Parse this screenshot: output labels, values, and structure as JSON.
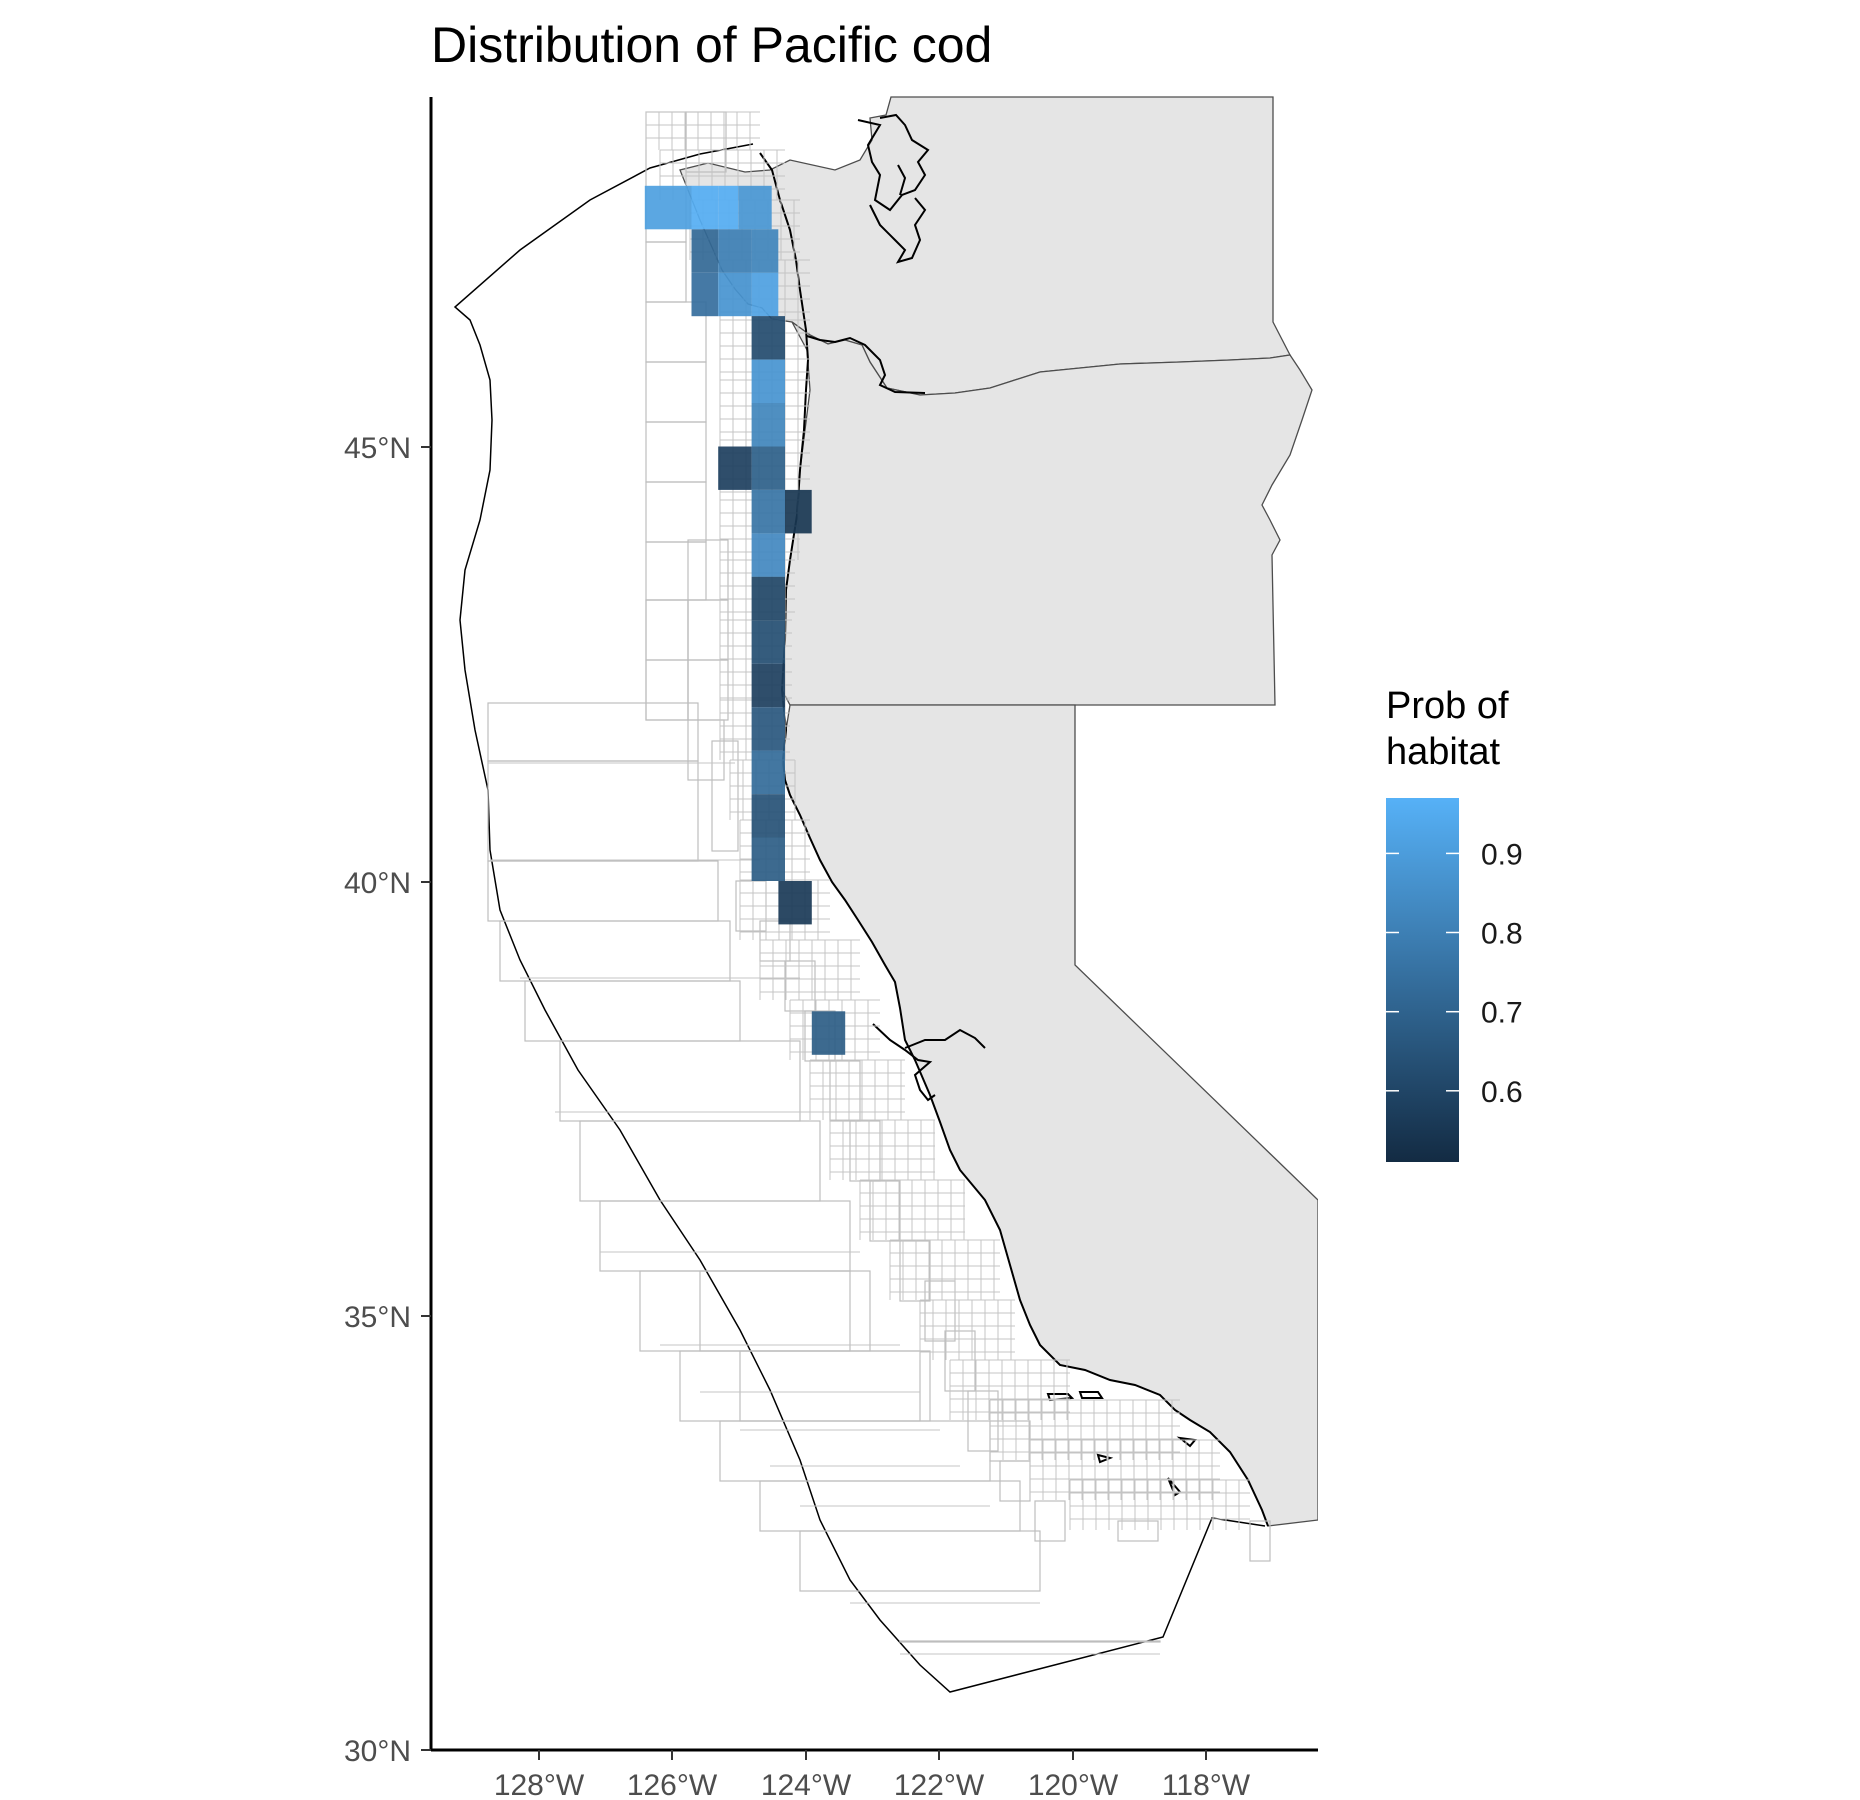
{
  "title": "Distribution of Pacific cod",
  "legend": {
    "title_line1": "Prob of",
    "title_line2": "habitat",
    "ticks": [
      "0.9",
      "0.8",
      "0.7",
      "0.6"
    ],
    "low_color": "#132b43",
    "high_color": "#56b1f7"
  },
  "axes": {
    "x_ticks": [
      "128°W",
      "126°W",
      "124°W",
      "122°W",
      "120°W",
      "118°W"
    ],
    "y_ticks": [
      "45°N",
      "40°N",
      "35°N",
      "30°N"
    ]
  },
  "chart_data": {
    "type": "heatmap",
    "title": "Distribution of Pacific cod",
    "x_range": [
      -129.5,
      -116.5
    ],
    "y_range": [
      30.0,
      49.0
    ],
    "color_scale": {
      "name": "Prob of habitat",
      "min": 0.51,
      "max": 0.97
    },
    "cells": [
      {
        "lon0": -126.4,
        "lon1": -125.7,
        "lat0": 47.5,
        "lat1": 48.0,
        "value": 0.91
      },
      {
        "lon0": -125.7,
        "lon1": -125.3,
        "lat0": 47.5,
        "lat1": 48.0,
        "value": 0.96
      },
      {
        "lon0": -125.3,
        "lon1": -125.0,
        "lat0": 47.5,
        "lat1": 48.0,
        "value": 0.96
      },
      {
        "lon0": -125.0,
        "lon1": -124.5,
        "lat0": 47.5,
        "lat1": 48.0,
        "value": 0.88
      },
      {
        "lon0": -125.7,
        "lon1": -125.3,
        "lat0": 47.0,
        "lat1": 47.5,
        "value": 0.72
      },
      {
        "lon0": -125.7,
        "lon1": -125.3,
        "lat0": 46.5,
        "lat1": 47.0,
        "value": 0.74
      },
      {
        "lon0": -125.3,
        "lon1": -124.8,
        "lat0": 47.0,
        "lat1": 47.5,
        "value": 0.8
      },
      {
        "lon0": -125.3,
        "lon1": -124.8,
        "lat0": 46.5,
        "lat1": 47.0,
        "value": 0.87
      },
      {
        "lon0": -124.8,
        "lon1": -124.4,
        "lat0": 47.0,
        "lat1": 47.5,
        "value": 0.82
      },
      {
        "lon0": -124.8,
        "lon1": -124.4,
        "lat0": 46.5,
        "lat1": 47.0,
        "value": 0.92
      },
      {
        "lon0": -124.8,
        "lon1": -124.3,
        "lat0": 46.0,
        "lat1": 46.5,
        "value": 0.62
      },
      {
        "lon0": -124.8,
        "lon1": -124.3,
        "lat0": 45.5,
        "lat1": 46.0,
        "value": 0.87
      },
      {
        "lon0": -124.8,
        "lon1": -124.3,
        "lat0": 45.0,
        "lat1": 45.5,
        "value": 0.82
      },
      {
        "lon0": -125.3,
        "lon1": -124.8,
        "lat0": 44.5,
        "lat1": 45.0,
        "value": 0.58
      },
      {
        "lon0": -124.8,
        "lon1": -124.3,
        "lat0": 44.5,
        "lat1": 45.0,
        "value": 0.69
      },
      {
        "lon0": -124.8,
        "lon1": -124.3,
        "lat0": 44.0,
        "lat1": 44.5,
        "value": 0.76
      },
      {
        "lon0": -124.3,
        "lon1": -123.9,
        "lat0": 44.0,
        "lat1": 44.5,
        "value": 0.55
      },
      {
        "lon0": -124.8,
        "lon1": -124.3,
        "lat0": 43.5,
        "lat1": 44.0,
        "value": 0.83
      },
      {
        "lon0": -124.8,
        "lon1": -124.3,
        "lat0": 43.0,
        "lat1": 43.5,
        "value": 0.6
      },
      {
        "lon0": -124.8,
        "lon1": -124.3,
        "lat0": 42.5,
        "lat1": 43.0,
        "value": 0.63
      },
      {
        "lon0": -124.8,
        "lon1": -124.3,
        "lat0": 42.0,
        "lat1": 42.5,
        "value": 0.58
      },
      {
        "lon0": -124.8,
        "lon1": -124.3,
        "lat0": 41.5,
        "lat1": 42.0,
        "value": 0.66
      },
      {
        "lon0": -124.8,
        "lon1": -124.3,
        "lat0": 41.0,
        "lat1": 41.5,
        "value": 0.73
      },
      {
        "lon0": -124.8,
        "lon1": -124.3,
        "lat0": 40.5,
        "lat1": 41.0,
        "value": 0.64
      },
      {
        "lon0": -124.8,
        "lon1": -124.3,
        "lat0": 40.0,
        "lat1": 40.5,
        "value": 0.68
      },
      {
        "lon0": -124.4,
        "lon1": -123.9,
        "lat0": 39.5,
        "lat1": 40.0,
        "value": 0.56
      },
      {
        "lon0": -123.9,
        "lon1": -123.4,
        "lat0": 38.0,
        "lat1": 38.5,
        "value": 0.68
      }
    ]
  }
}
